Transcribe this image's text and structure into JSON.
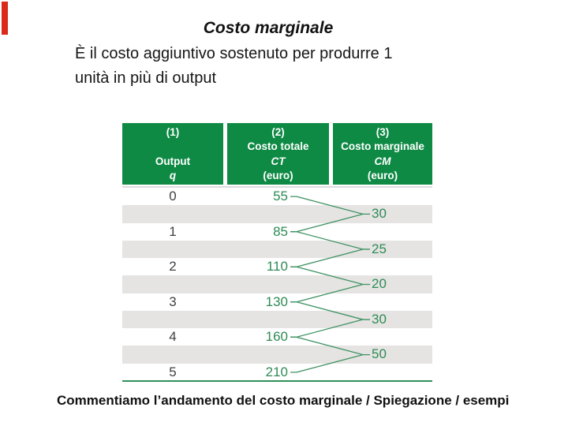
{
  "slide": {
    "title": "Costo marginale",
    "body_lines": [
      "È il costo aggiuntivo sostenuto per produrre 1",
      "unità in più di output"
    ],
    "footer": "Commentiamo l’andamento del costo marginale / Spiegazione / esempi"
  },
  "accent": {
    "red_marker": "#d92a1c",
    "header_green": "#0f8a45",
    "number_green": "#2e8b55",
    "line_green": "#3f9263",
    "row_gray": "#e5e4e2"
  },
  "table": {
    "header": [
      {
        "num": "(1)",
        "name": "Output",
        "symbol": "q"
      },
      {
        "num": "(2)",
        "name": "Costo totale",
        "symbol": "CT",
        "unit": "(euro)"
      },
      {
        "num": "(3)",
        "name": "Costo marginale",
        "symbol": "CM",
        "unit": "(euro)"
      }
    ],
    "output_values": [
      "0",
      "1",
      "2",
      "3",
      "4",
      "5"
    ],
    "total_cost_values": [
      "55",
      "85",
      "110",
      "130",
      "160",
      "210"
    ],
    "marginal_cost_values": [
      "30",
      "25",
      "20",
      "30",
      "50"
    ]
  },
  "chart_data": {
    "type": "table",
    "title": "Costo marginale",
    "columns": [
      "(1) Output q",
      "(2) Costo totale CT (euro)",
      "(3) Costo marginale CM (euro)"
    ],
    "output_q": [
      0,
      1,
      2,
      3,
      4,
      5
    ],
    "costo_totale_ct": [
      55,
      85,
      110,
      130,
      160,
      210
    ],
    "costo_marginale_cm": [
      30,
      25,
      20,
      30,
      50
    ]
  }
}
